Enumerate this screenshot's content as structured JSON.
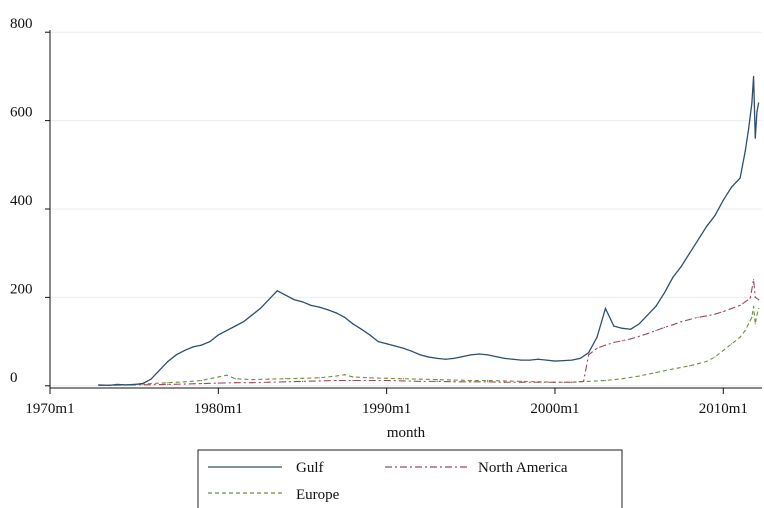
{
  "chart_data": {
    "type": "line",
    "title": "",
    "xlabel": "month",
    "ylabel": "",
    "x_ticks": [
      "1970m1",
      "1980m1",
      "1990m1",
      "2000m1",
      "2010m1"
    ],
    "y_ticks": [
      "0",
      "200",
      "400",
      "600",
      "800"
    ],
    "xlim": [
      1970,
      2012.3
    ],
    "ylim": [
      -5,
      805
    ],
    "grid": "horizontal",
    "legend": "bottom",
    "series": [
      {
        "name": "Gulf",
        "color": "#2f4f6f",
        "style": "solid",
        "points": [
          [
            1972.9,
            2
          ],
          [
            1973.5,
            1
          ],
          [
            1974.0,
            3
          ],
          [
            1974.5,
            2
          ],
          [
            1975.0,
            3
          ],
          [
            1975.5,
            5
          ],
          [
            1976.0,
            15
          ],
          [
            1976.5,
            35
          ],
          [
            1977.0,
            55
          ],
          [
            1977.5,
            70
          ],
          [
            1978.0,
            80
          ],
          [
            1978.5,
            88
          ],
          [
            1979.0,
            92
          ],
          [
            1979.5,
            100
          ],
          [
            1980.0,
            115
          ],
          [
            1980.5,
            125
          ],
          [
            1981.0,
            135
          ],
          [
            1981.5,
            145
          ],
          [
            1982.0,
            160
          ],
          [
            1982.5,
            175
          ],
          [
            1983.0,
            195
          ],
          [
            1983.5,
            215
          ],
          [
            1984.0,
            205
          ],
          [
            1984.5,
            195
          ],
          [
            1985.0,
            190
          ],
          [
            1985.5,
            182
          ],
          [
            1986.0,
            178
          ],
          [
            1986.5,
            172
          ],
          [
            1987.0,
            165
          ],
          [
            1987.5,
            155
          ],
          [
            1988.0,
            140
          ],
          [
            1988.5,
            128
          ],
          [
            1989.0,
            115
          ],
          [
            1989.5,
            100
          ],
          [
            1990.0,
            95
          ],
          [
            1990.5,
            90
          ],
          [
            1991.0,
            85
          ],
          [
            1991.5,
            78
          ],
          [
            1992.0,
            70
          ],
          [
            1992.5,
            65
          ],
          [
            1993.0,
            62
          ],
          [
            1993.5,
            60
          ],
          [
            1994.0,
            62
          ],
          [
            1994.5,
            66
          ],
          [
            1995.0,
            70
          ],
          [
            1995.5,
            72
          ],
          [
            1996.0,
            70
          ],
          [
            1996.5,
            66
          ],
          [
            1997.0,
            62
          ],
          [
            1997.5,
            60
          ],
          [
            1998.0,
            58
          ],
          [
            1998.5,
            58
          ],
          [
            1999.0,
            60
          ],
          [
            1999.5,
            58
          ],
          [
            2000.0,
            56
          ],
          [
            2000.5,
            57
          ],
          [
            2001.0,
            58
          ],
          [
            2001.5,
            62
          ],
          [
            2002.0,
            75
          ],
          [
            2002.5,
            110
          ],
          [
            2003.0,
            175
          ],
          [
            2003.5,
            135
          ],
          [
            2004.0,
            130
          ],
          [
            2004.5,
            128
          ],
          [
            2005.0,
            140
          ],
          [
            2005.5,
            160
          ],
          [
            2006.0,
            180
          ],
          [
            2006.5,
            210
          ],
          [
            2007.0,
            245
          ],
          [
            2007.5,
            270
          ],
          [
            2008.0,
            300
          ],
          [
            2008.5,
            330
          ],
          [
            2009.0,
            360
          ],
          [
            2009.5,
            385
          ],
          [
            2010.0,
            420
          ],
          [
            2010.5,
            450
          ],
          [
            2011.0,
            470
          ],
          [
            2011.3,
            530
          ],
          [
            2011.5,
            580
          ],
          [
            2011.7,
            640
          ],
          [
            2011.8,
            700
          ],
          [
            2011.9,
            560
          ],
          [
            2012.0,
            620
          ],
          [
            2012.1,
            640
          ]
        ]
      },
      {
        "name": "North America",
        "color": "#9b4a5a",
        "style": "dashdot",
        "points": [
          [
            1972.9,
            1
          ],
          [
            1975.0,
            2
          ],
          [
            1977.0,
            3
          ],
          [
            1978.0,
            4
          ],
          [
            1979.0,
            5
          ],
          [
            1980.0,
            6
          ],
          [
            1981.0,
            7
          ],
          [
            1982.0,
            7
          ],
          [
            1983.0,
            8
          ],
          [
            1984.0,
            9
          ],
          [
            1985.0,
            10
          ],
          [
            1986.0,
            11
          ],
          [
            1987.0,
            12
          ],
          [
            1988.0,
            12
          ],
          [
            1989.0,
            12
          ],
          [
            1990.0,
            12
          ],
          [
            1991.0,
            11
          ],
          [
            1992.0,
            10
          ],
          [
            1993.0,
            10
          ],
          [
            1994.0,
            9
          ],
          [
            1995.0,
            9
          ],
          [
            1996.0,
            9
          ],
          [
            1997.0,
            8
          ],
          [
            1998.0,
            8
          ],
          [
            1999.0,
            8
          ],
          [
            2000.0,
            8
          ],
          [
            2001.0,
            8
          ],
          [
            2001.7,
            10
          ],
          [
            2002.0,
            70
          ],
          [
            2002.5,
            85
          ],
          [
            2003.0,
            92
          ],
          [
            2003.5,
            98
          ],
          [
            2004.0,
            102
          ],
          [
            2004.5,
            106
          ],
          [
            2005.0,
            112
          ],
          [
            2005.5,
            118
          ],
          [
            2006.0,
            125
          ],
          [
            2006.5,
            132
          ],
          [
            2007.0,
            138
          ],
          [
            2007.5,
            145
          ],
          [
            2008.0,
            150
          ],
          [
            2008.5,
            155
          ],
          [
            2009.0,
            158
          ],
          [
            2009.5,
            162
          ],
          [
            2010.0,
            168
          ],
          [
            2010.5,
            175
          ],
          [
            2011.0,
            182
          ],
          [
            2011.3,
            190
          ],
          [
            2011.6,
            198
          ],
          [
            2011.8,
            240
          ],
          [
            2011.9,
            200
          ],
          [
            2012.1,
            195
          ]
        ]
      },
      {
        "name": "Europe",
        "color": "#6f8f3f",
        "style": "dashed",
        "points": [
          [
            1972.9,
            1
          ],
          [
            1974.0,
            2
          ],
          [
            1975.0,
            3
          ],
          [
            1976.0,
            5
          ],
          [
            1977.0,
            7
          ],
          [
            1978.0,
            9
          ],
          [
            1979.0,
            12
          ],
          [
            1980.0,
            20
          ],
          [
            1980.5,
            24
          ],
          [
            1981.0,
            16
          ],
          [
            1982.0,
            14
          ],
          [
            1983.0,
            15
          ],
          [
            1984.0,
            16
          ],
          [
            1985.0,
            17
          ],
          [
            1986.0,
            18
          ],
          [
            1987.0,
            22
          ],
          [
            1987.5,
            25
          ],
          [
            1988.0,
            20
          ],
          [
            1989.0,
            18
          ],
          [
            1990.0,
            17
          ],
          [
            1991.0,
            16
          ],
          [
            1992.0,
            15
          ],
          [
            1993.0,
            14
          ],
          [
            1994.0,
            13
          ],
          [
            1995.0,
            12
          ],
          [
            1996.0,
            12
          ],
          [
            1997.0,
            11
          ],
          [
            1998.0,
            10
          ],
          [
            1999.0,
            9
          ],
          [
            2000.0,
            8
          ],
          [
            2001.0,
            8
          ],
          [
            2002.0,
            10
          ],
          [
            2003.0,
            12
          ],
          [
            2004.0,
            16
          ],
          [
            2005.0,
            22
          ],
          [
            2006.0,
            30
          ],
          [
            2007.0,
            38
          ],
          [
            2008.0,
            45
          ],
          [
            2008.5,
            50
          ],
          [
            2009.0,
            55
          ],
          [
            2009.5,
            65
          ],
          [
            2010.0,
            80
          ],
          [
            2010.5,
            95
          ],
          [
            2011.0,
            110
          ],
          [
            2011.3,
            125
          ],
          [
            2011.5,
            140
          ],
          [
            2011.7,
            155
          ],
          [
            2011.8,
            180
          ],
          [
            2011.9,
            140
          ],
          [
            2012.0,
            160
          ],
          [
            2012.1,
            175
          ]
        ]
      }
    ]
  }
}
